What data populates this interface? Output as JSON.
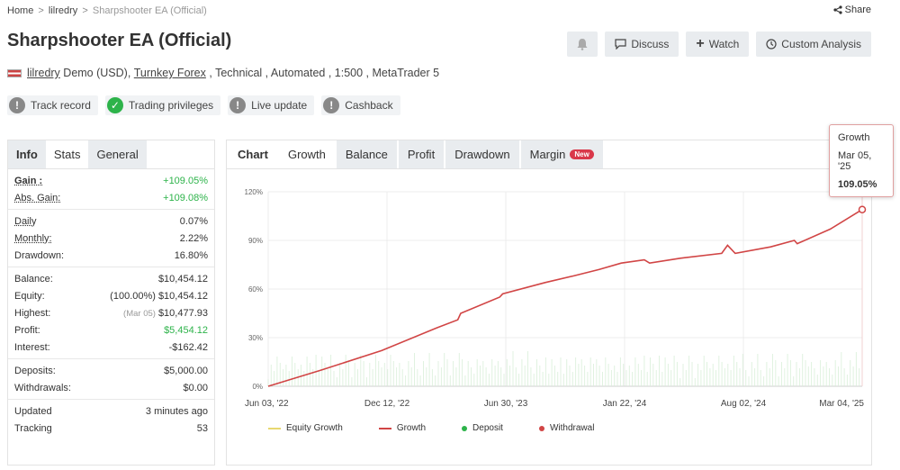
{
  "breadcrumb": {
    "home": "Home",
    "sep1": ">",
    "user": "lilredry",
    "sep2": ">",
    "current": "Sharpshooter EA (Official)"
  },
  "share_label": "Share",
  "title": "Sharpshooter EA (Official)",
  "actions": {
    "discuss": "Discuss",
    "watch": "Watch",
    "custom": "Custom Analysis"
  },
  "meta": {
    "user": "lilredry",
    "account": " Demo (USD), ",
    "broker": "Turnkey Forex",
    "rest": " , Technical , Automated , 1:500 , MetaTrader 5"
  },
  "badges": [
    {
      "label": "Track record",
      "status": "warning"
    },
    {
      "label": "Trading privileges",
      "status": "ok"
    },
    {
      "label": "Live update",
      "status": "warning"
    },
    {
      "label": "Cashback",
      "status": "warning"
    }
  ],
  "stats_tabs": {
    "info": "Info",
    "stats": "Stats",
    "general": "General"
  },
  "stats": {
    "gain": {
      "label": "Gain :",
      "value": "+109.05%"
    },
    "abs_gain": {
      "label": "Abs. Gain:",
      "value": "+109.08%"
    },
    "daily": {
      "label": "Daily",
      "value": "0.07%"
    },
    "monthly": {
      "label": "Monthly:",
      "value": "2.22%"
    },
    "drawdown": {
      "label": "Drawdown:",
      "value": "16.80%"
    },
    "balance": {
      "label": "Balance:",
      "value": "$10,454.12"
    },
    "equity": {
      "label": "Equity:",
      "sub": "(100.00%)",
      "value": "$10,454.12"
    },
    "highest": {
      "label": "Highest:",
      "sub": "(Mar 05)",
      "value": "$10,477.93"
    },
    "profit": {
      "label": "Profit:",
      "value": "$5,454.12"
    },
    "interest": {
      "label": "Interest:",
      "value": "-$162.42"
    },
    "deposits": {
      "label": "Deposits:",
      "value": "$5,000.00"
    },
    "withdrawals": {
      "label": "Withdrawals:",
      "value": "$0.00"
    },
    "updated": {
      "label": "Updated",
      "value": "3 minutes ago"
    },
    "tracking": {
      "label": "Tracking",
      "value": "53"
    }
  },
  "chart_tabs": {
    "label": "Chart",
    "growth": "Growth",
    "balance": "Balance",
    "profit": "Profit",
    "drawdown": "Drawdown",
    "margin": "Margin",
    "new_badge": "New"
  },
  "tooltip": {
    "title": "Growth",
    "date": "Mar 05, '25",
    "value": "109.05%"
  },
  "legend": {
    "equity": "Equity Growth",
    "growth": "Growth",
    "deposit": "Deposit",
    "withdrawal": "Withdrawal"
  },
  "colors": {
    "growth": "#d14545",
    "equity": "#e8d870",
    "deposit": "#2db34a",
    "withdrawal": "#d14545",
    "ok": "#2db34a"
  },
  "chart_data": {
    "type": "line",
    "ylim": [
      0,
      120
    ],
    "yticks": [
      "0%",
      "30%",
      "60%",
      "90%",
      "120%"
    ],
    "xticks": [
      "Jun 03, '22",
      "Dec 12, '22",
      "Jun 30, '23",
      "Jan 22, '24",
      "Aug 02, '24",
      "Mar 04, '25"
    ],
    "series": [
      {
        "name": "Growth",
        "x": [
          "Jun 03, '22",
          "Sep 01, '22",
          "Dec 12, '22",
          "Mar 15, '23",
          "Apr 20, '23",
          "Apr 25, '23",
          "Jun 30, '23",
          "Jul 05, '23",
          "Sep 15, '23",
          "Nov 01, '23",
          "Dec 15, '23",
          "Jan 22, '24",
          "Mar 01, '24",
          "Mar 10, '24",
          "May 01, '24",
          "Jul 10, '24",
          "Jul 20, '24",
          "Aug 02, '24",
          "Oct 01, '24",
          "Nov 10, '24",
          "Nov 15, '24",
          "Jan 10, '25",
          "Mar 05, '25"
        ],
        "y": [
          0,
          10,
          22,
          36,
          41,
          45,
          55,
          57,
          64,
          68,
          72,
          76,
          78,
          76,
          79,
          82,
          87,
          82,
          86,
          90,
          88,
          97,
          109.05
        ]
      }
    ],
    "legend_position": "bottom",
    "grid": true
  }
}
